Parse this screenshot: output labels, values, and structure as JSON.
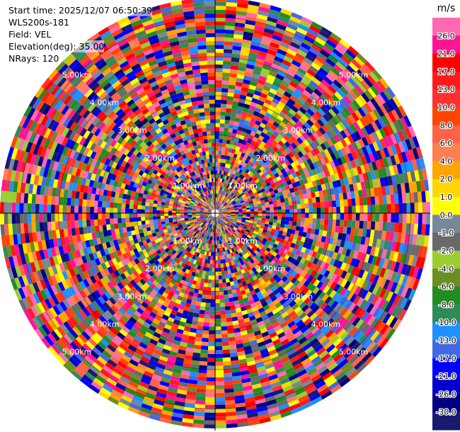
{
  "header": {
    "start_time": "Start time: 2025/12/07 06:50:39",
    "instrument": "WLS200s-181",
    "field": "Field: VEL",
    "elevation": "Elevation(deg): 35.00",
    "nrays": "NRays: 120"
  },
  "chart_data": {
    "type": "heatmap",
    "subtype": "polar-ppi",
    "field": "VEL",
    "n_rays": 120,
    "elevation_deg": 35.0,
    "range_rings_km": [
      1,
      2,
      3,
      4,
      5
    ],
    "range_ring_labels": [
      "1.00km",
      "2.00km",
      "3.00km",
      "4.00km",
      "5.00km"
    ],
    "max_range_km": 5.5,
    "crosshair": true,
    "colorbar": {
      "unit": "m/s",
      "tick_labels": [
        "26.0",
        "21.0",
        "17.0",
        "13.0",
        "10.0",
        "8.0",
        "6.0",
        "4.0",
        "2.0",
        "1.0",
        "0.0",
        "-1.0",
        "-2.0",
        "-4.0",
        "-6.0",
        "-8.0",
        "-10.0",
        "-13.0",
        "-17.0",
        "-21.0",
        "-26.0",
        "-30.0"
      ],
      "colors": [
        "#ff69b4",
        "#ff1493",
        "#ff0000",
        "#ff1a1a",
        "#ff3030",
        "#ff4500",
        "#ff6347",
        "#ff7f50",
        "#ffa500",
        "#ffd700",
        "#ffff00",
        "#778899",
        "#696969",
        "#9acd32",
        "#6b8e23",
        "#228b22",
        "#2e8b57",
        "#1e90ff",
        "#4169e1",
        "#0000ff",
        "#0000cd",
        "#000080",
        "#191970"
      ]
    }
  }
}
